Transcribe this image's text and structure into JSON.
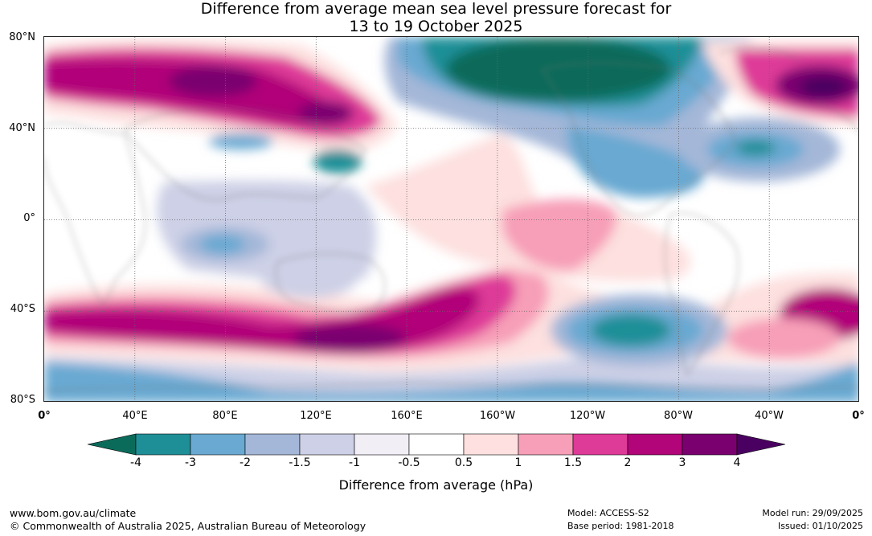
{
  "title": {
    "line1": "Difference from average mean sea level pressure forecast for",
    "line2": "13 to 19 October 2025"
  },
  "axes": {
    "y_ticks": [
      "80°N",
      "40°N",
      "0°",
      "40°S",
      "80°S"
    ],
    "x_ticks": [
      "0°",
      "40°E",
      "80°E",
      "120°E",
      "160°E",
      "160°W",
      "120°W",
      "80°W",
      "40°W",
      "0°"
    ]
  },
  "legend": {
    "title": "Difference from average (hPa)",
    "ticks": [
      "-4",
      "-3",
      "-2",
      "-1.5",
      "-1",
      "-0.5",
      "0.5",
      "1",
      "1.5",
      "2",
      "3",
      "4"
    ],
    "colors": [
      "#0b6b5a",
      "#1f8f97",
      "#69a9d2",
      "#a4b7d8",
      "#cdd0e6",
      "#f1eef5",
      "#ffffff",
      "#fde0df",
      "#f79fb8",
      "#de3a98",
      "#b10579",
      "#7a006f",
      "#4a0060"
    ]
  },
  "footer": {
    "website": "www.bom.gov.au/climate",
    "copyright": "© Commonwealth of Australia 2025, Australian Bureau of Meteorology",
    "model": "Model: ACCESS-S2",
    "base_period": "Base period: 1981-2018",
    "model_run": "Model run: 29/09/2025",
    "issued": "Issued: 01/10/2025"
  }
}
